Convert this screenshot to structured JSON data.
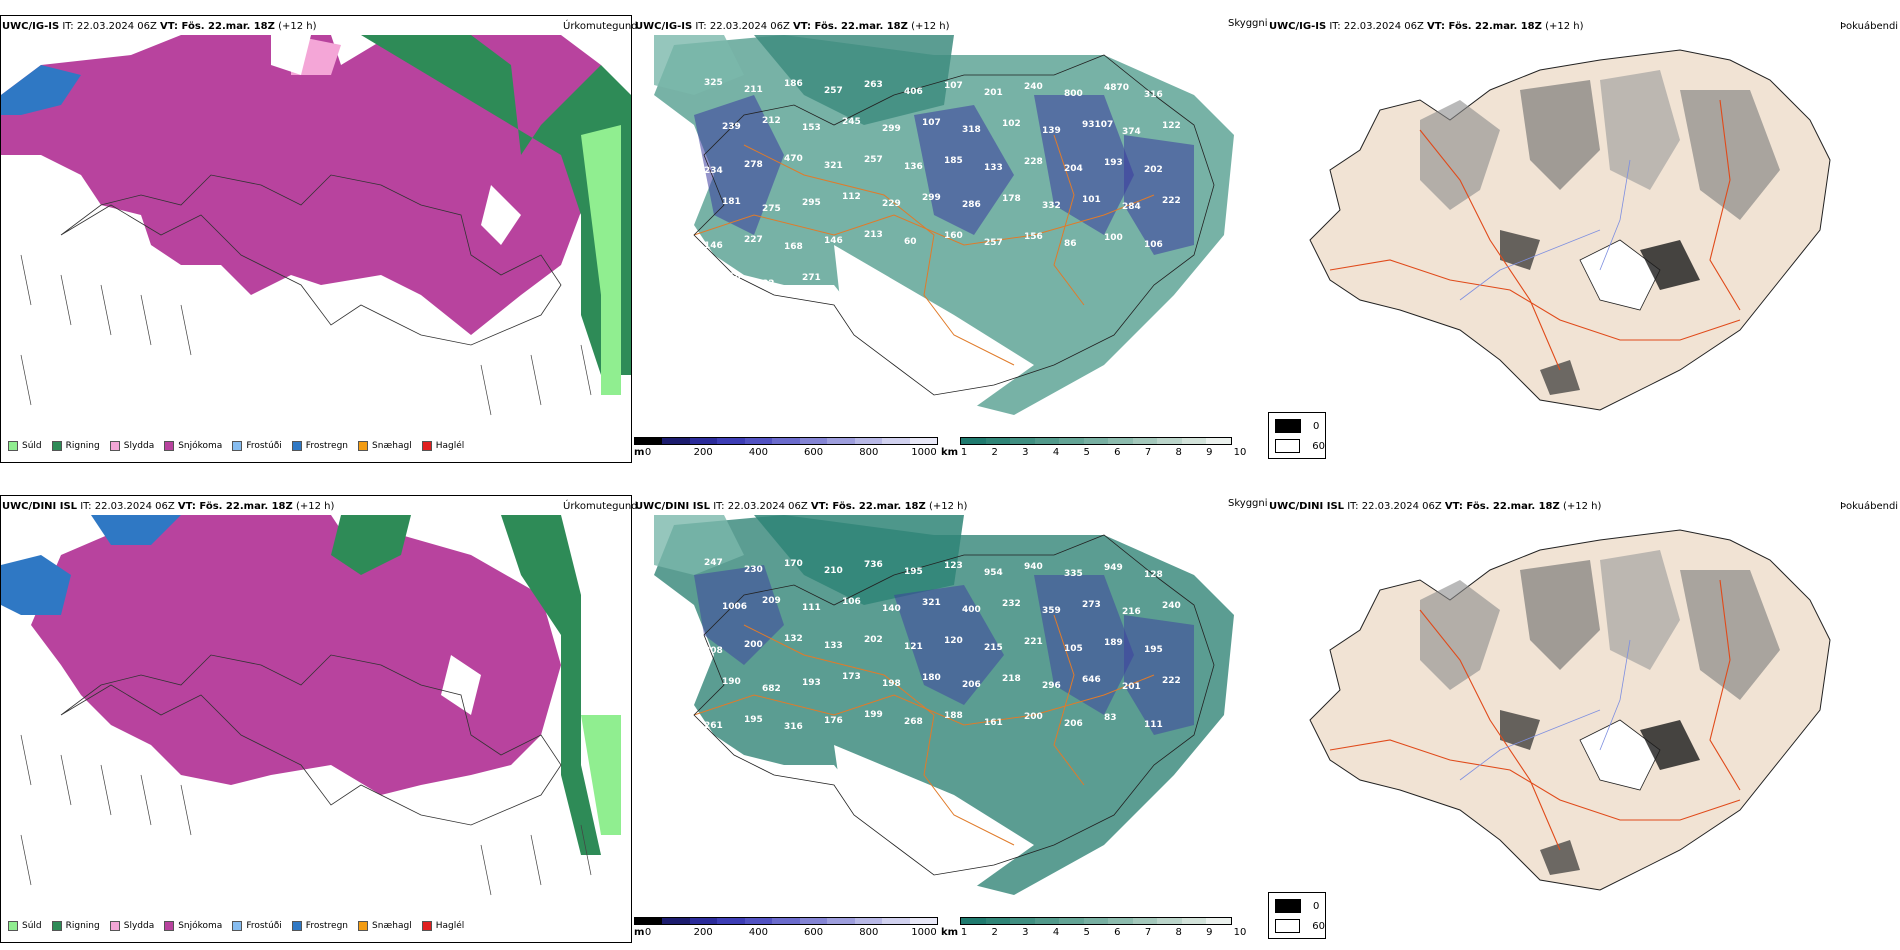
{
  "rows": [
    {
      "model": "UWC/IG-IS",
      "precip_header": {
        "model": "UWC/IG-IS",
        "it": " IT: 22.03.2024 06Z ",
        "vt_label": "VT: Fös. 22.mar. 18Z",
        "lead": " (+12 h)"
      },
      "precip_title": "Úrkomutegund",
      "cloud_header": {
        "model": "UWC/IG-IS",
        "it": " IT: 22.03.2024 06Z ",
        "vt_label": "VT: Fös. 22.mar. 18Z",
        "lead": " (+12 h)"
      },
      "cloud_title": "Skyggni",
      "fog_header": {
        "model": "UWC/IG-IS",
        "it": " IT: 22.03.2024 06Z ",
        "vt_label": "VT: Fös. 22.mar. 18Z",
        "lead": " (+12 h)"
      },
      "fog_title": "Þokuábendi",
      "point_values": [
        "325",
        "211",
        "186",
        "257",
        "263",
        "406",
        "107",
        "201",
        "240",
        "800",
        "4870",
        "316",
        "239",
        "212",
        "153",
        "245",
        "299",
        "107",
        "318",
        "102",
        "139",
        "93107",
        "374",
        "122",
        "234",
        "278",
        "470",
        "321",
        "257",
        "136",
        "185",
        "133",
        "228",
        "204",
        "193",
        "202",
        "181",
        "275",
        "295",
        "112",
        "229",
        "299",
        "286",
        "178",
        "332",
        "101",
        "284",
        "222",
        "146",
        "227",
        "168",
        "146",
        "213",
        "60",
        "160",
        "257",
        "156",
        "86",
        "100",
        "106",
        "168",
        "82",
        "271"
      ]
    },
    {
      "model": "UWC/DINI ISL",
      "precip_header": {
        "model": "UWC/DINI ISL",
        "it": " IT: 22.03.2024 06Z ",
        "vt_label": "VT: Fös. 22.mar. 18Z",
        "lead": " (+12 h)"
      },
      "precip_title": "Úrkomutegund",
      "cloud_header": {
        "model": "UWC/DINI ISL",
        "it": " IT: 22.03.2024 06Z ",
        "vt_label": "VT: Fös. 22.mar. 18Z",
        "lead": " (+12 h)"
      },
      "cloud_title": "Skyggni",
      "fog_header": {
        "model": "UWC/DINI ISL",
        "it": " IT: 22.03.2024 06Z ",
        "vt_label": "VT: Fös. 22.mar. 18Z",
        "lead": " (+12 h)"
      },
      "fog_title": "Þokuábendi",
      "point_values": [
        "247",
        "230",
        "170",
        "210",
        "736",
        "195",
        "123",
        "954",
        "940",
        "335",
        "949",
        "128",
        "1006",
        "209",
        "111",
        "106",
        "140",
        "321",
        "400",
        "232",
        "359",
        "273",
        "216",
        "240",
        "208",
        "200",
        "132",
        "133",
        "202",
        "121",
        "120",
        "215",
        "221",
        "105",
        "189",
        "195",
        "190",
        "682",
        "193",
        "173",
        "198",
        "180",
        "206",
        "218",
        "296",
        "646",
        "201",
        "222",
        "261",
        "195",
        "316",
        "176",
        "199",
        "268",
        "188",
        "161",
        "200",
        "206",
        "83",
        "111"
      ]
    }
  ],
  "precip_legend": [
    {
      "label": "Súld",
      "color": "#90ee90"
    },
    {
      "label": "Rigning",
      "color": "#2e8b57"
    },
    {
      "label": "Slydda",
      "color": "#f4a6d7"
    },
    {
      "label": "Snjókoma",
      "color": "#b8439e"
    },
    {
      "label": "Frostúði",
      "color": "#87bdf0"
    },
    {
      "label": "Frostregn",
      "color": "#2f78c4"
    },
    {
      "label": "Snæhagl",
      "color": "#f39c12"
    },
    {
      "label": "Haglél",
      "color": "#e02020"
    }
  ],
  "cloud_base_legend": {
    "unit": "m",
    "ticks": [
      "0",
      "200",
      "400",
      "600",
      "800",
      "1000"
    ],
    "colors": [
      "#000000",
      "#1c1c6e",
      "#2b2b9a",
      "#3d3db5",
      "#5252c2",
      "#6b6bcc",
      "#8484d4",
      "#9e9edd",
      "#b8b8e6",
      "#d1d1ef",
      "#e8e8f7"
    ]
  },
  "visibility_legend": {
    "unit": "km",
    "ticks": [
      "1",
      "2",
      "3",
      "4",
      "5",
      "6",
      "7",
      "8",
      "9",
      "10"
    ],
    "colors": [
      "#1f7a6e",
      "#2f8577",
      "#408f81",
      "#529a8b",
      "#64a596",
      "#78b0a2",
      "#8dbcae",
      "#a4c8bb",
      "#bbd5ca",
      "#d3e3da",
      "#ecf2ee"
    ]
  },
  "fog_legend": [
    {
      "label": "0",
      "color": "#000000"
    },
    {
      "label": "60",
      "color": "#ffffff"
    }
  ]
}
